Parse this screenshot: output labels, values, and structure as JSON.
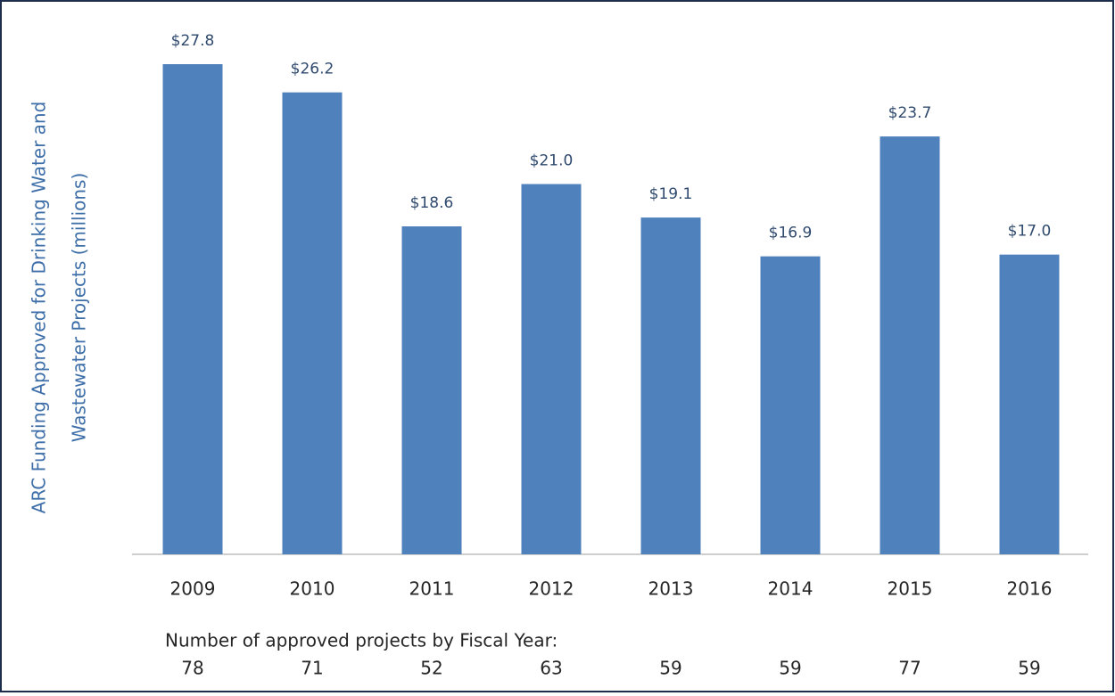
{
  "chart_data": {
    "type": "bar",
    "y_label": [
      "ARC Funding Approved for Drinking Water and",
      "Wastewater Projects (millions)"
    ],
    "categories": [
      "2009",
      "2010",
      "2011",
      "2012",
      "2013",
      "2014",
      "2015",
      "2016"
    ],
    "values": [
      27.8,
      26.2,
      18.6,
      21.0,
      19.1,
      16.9,
      23.7,
      17.0
    ],
    "value_labels": [
      "$27.8",
      "$26.2",
      "$18.6",
      "$21.0",
      "$19.1",
      "$16.9",
      "$23.7",
      "$17.0"
    ],
    "color": "#4f81bd",
    "project_counts": {
      "label": "Number of approved projects by Fiscal Year:",
      "values": [
        78,
        71,
        52,
        63,
        59,
        59,
        77,
        59
      ]
    }
  }
}
